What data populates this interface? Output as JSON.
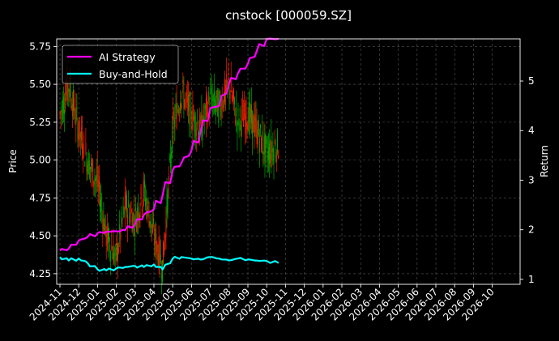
{
  "chart_data": {
    "type": "line",
    "title": "cnstock [000059.SZ]",
    "ylabel_left": "Price",
    "ylabel_right": "Return",
    "ylim_left": [
      4.18,
      5.8
    ],
    "ylim_right": [
      0.9,
      5.85
    ],
    "y_ticks_left": [
      "4.25",
      "4.50",
      "4.75",
      "5.00",
      "5.25",
      "5.50",
      "5.75"
    ],
    "y_ticks_right": [
      "1",
      "2",
      "3",
      "4",
      "5"
    ],
    "x_ticks": [
      "2024-11",
      "2024-12",
      "2025-01",
      "2025-02",
      "2025-03",
      "2025-04",
      "2025-05",
      "2025-06",
      "2025-07",
      "2025-08",
      "2025-09",
      "2025-10",
      "2025-11",
      "2025-12",
      "2026-01",
      "2026-02",
      "2026-03",
      "2026-04",
      "2026-05",
      "2026-06",
      "2026-07",
      "2026-08",
      "2026-09",
      "2026-10"
    ],
    "grid": true,
    "legend_position": "top-left",
    "colors": {
      "background": "#000000",
      "ai_strategy": "#ff00ff",
      "buy_and_hold": "#00ffff",
      "candle_up": "#ff2200",
      "candle_down": "#00aa00",
      "grid": "#555555"
    },
    "series": [
      {
        "name": "AI Strategy",
        "axis": "right",
        "x": [
          "2024-11",
          "2024-11-15",
          "2024-12",
          "2024-12-15",
          "2025-01",
          "2025-01-15",
          "2025-02",
          "2025-02-15",
          "2025-03",
          "2025-03-15",
          "2025-04",
          "2025-04-15",
          "2025-05",
          "2025-05-15",
          "2025-06",
          "2025-06-15",
          "2025-07",
          "2025-07-15",
          "2025-08",
          "2025-08-15",
          "2025-09",
          "2025-09-15",
          "2025-10",
          "2025-10-20"
        ],
        "values": [
          1.58,
          1.62,
          1.78,
          1.85,
          1.93,
          1.96,
          1.97,
          1.99,
          2.12,
          2.3,
          2.42,
          2.7,
          3.2,
          3.35,
          3.6,
          3.95,
          4.45,
          4.5,
          4.95,
          5.15,
          5.35,
          5.6,
          5.85,
          5.85
        ]
      },
      {
        "name": "Buy-and-Hold",
        "axis": "right",
        "x": [
          "2024-11",
          "2024-11-15",
          "2024-12",
          "2024-12-15",
          "2025-01",
          "2025-01-15",
          "2025-02",
          "2025-02-15",
          "2025-03",
          "2025-03-15",
          "2025-04",
          "2025-04-15",
          "2025-05",
          "2025-05-15",
          "2025-06",
          "2025-06-15",
          "2025-07",
          "2025-07-15",
          "2025-08",
          "2025-08-15",
          "2025-09",
          "2025-09-15",
          "2025-10",
          "2025-10-20"
        ],
        "values": [
          1.45,
          1.38,
          1.42,
          1.33,
          1.2,
          1.18,
          1.22,
          1.25,
          1.27,
          1.25,
          1.3,
          1.2,
          1.42,
          1.45,
          1.42,
          1.4,
          1.45,
          1.42,
          1.38,
          1.42,
          1.4,
          1.38,
          1.37,
          1.33
        ]
      }
    ],
    "candles": {
      "axis": "left",
      "x": [
        "2024-11",
        "2024-11-15",
        "2024-12",
        "2024-12-15",
        "2025-01",
        "2025-01-15",
        "2025-02",
        "2025-02-15",
        "2025-03",
        "2025-03-15",
        "2025-04",
        "2025-04-15",
        "2025-05",
        "2025-05-15",
        "2025-06",
        "2025-06-15",
        "2025-07",
        "2025-07-15",
        "2025-08",
        "2025-08-15",
        "2025-09",
        "2025-09-15",
        "2025-10",
        "2025-10-20"
      ],
      "close": [
        5.3,
        5.5,
        5.2,
        5.0,
        4.85,
        4.5,
        4.35,
        4.7,
        4.6,
        4.8,
        4.5,
        4.3,
        5.2,
        5.45,
        5.3,
        5.2,
        5.4,
        5.35,
        5.5,
        5.25,
        5.3,
        5.2,
        5.05,
        5.1
      ]
    }
  }
}
